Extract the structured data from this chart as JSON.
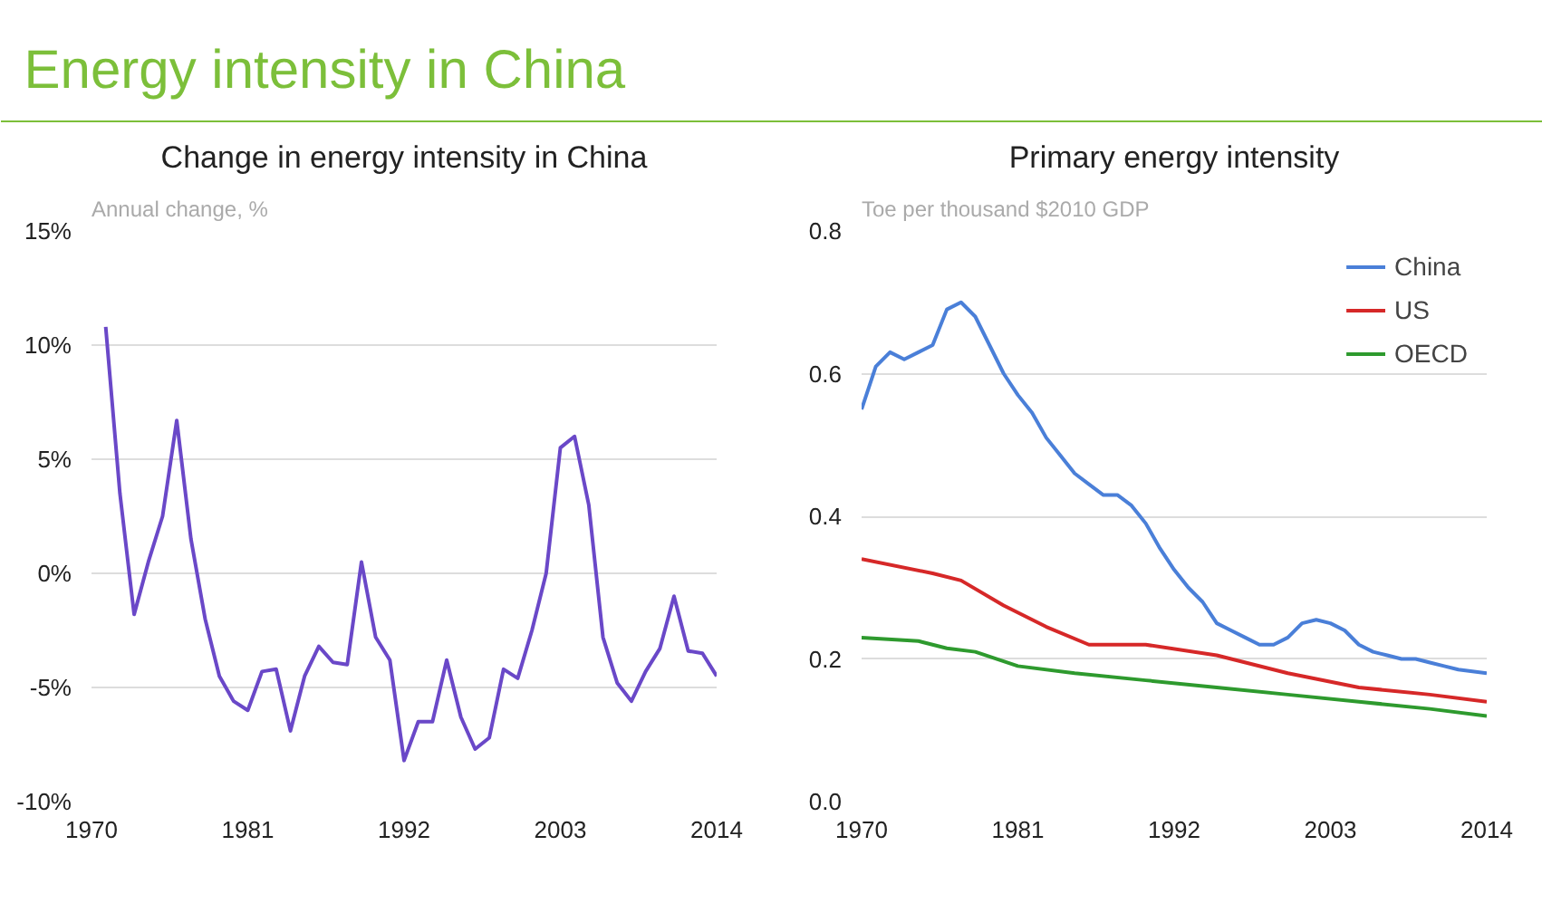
{
  "chart_data": [
    {
      "type": "other",
      "title": "Energy intensity in China",
      "color": "#7cbf3a"
    },
    {
      "type": "line",
      "title": "Change in energy intensity in China",
      "ylabel": "Annual change, %",
      "x": [
        1971,
        1972,
        1973,
        1974,
        1975,
        1976,
        1977,
        1978,
        1979,
        1980,
        1981,
        1982,
        1983,
        1984,
        1985,
        1986,
        1987,
        1988,
        1989,
        1990,
        1991,
        1992,
        1993,
        1994,
        1995,
        1996,
        1997,
        1998,
        1999,
        2000,
        2001,
        2002,
        2003,
        2004,
        2005,
        2006,
        2007,
        2008,
        2009,
        2010,
        2011,
        2012,
        2013,
        2014
      ],
      "series": [
        {
          "color": "#6a48c8",
          "values": [
            10.8,
            3.5,
            -1.8,
            0.5,
            2.5,
            6.7,
            1.5,
            -2,
            -4.5,
            -5.6,
            -6,
            -4.3,
            -4.2,
            -6.9,
            -4.5,
            -3.2,
            -3.9,
            -4,
            0.5,
            -2.8,
            -3.8,
            -8.2,
            -6.5,
            -6.5,
            -3.8,
            -6.3,
            -7.7,
            -7.2,
            -4.2,
            -4.6,
            -2.5,
            0,
            5.5,
            6,
            3,
            -2.8,
            -4.8,
            -5.6,
            -4.3,
            -3.3,
            -1,
            -3.4,
            -3.5,
            -4.5
          ]
        }
      ],
      "xlim": [
        1970,
        2014
      ],
      "xticks": [
        1970,
        1981,
        1992,
        2003,
        2014
      ],
      "ylim": [
        -10,
        15
      ],
      "yticks": [
        {
          "value": -10,
          "label": "-10%"
        },
        {
          "value": -5,
          "label": "-5%"
        },
        {
          "value": 0,
          "label": "0%"
        },
        {
          "value": 5,
          "label": "5%"
        },
        {
          "value": 10,
          "label": "10%"
        },
        {
          "value": 15,
          "label": "15%"
        }
      ],
      "grid": "y",
      "legend": false
    },
    {
      "type": "line",
      "title": "Primary energy intensity",
      "ylabel": "Toe per thousand $2010 GDP",
      "series": [
        {
          "name": "China",
          "color": "#4a7fd8",
          "x": [
            1970,
            1971,
            1972,
            1973,
            1974,
            1975,
            1976,
            1977,
            1978,
            1979,
            1980,
            1981,
            1982,
            1983,
            1984,
            1985,
            1986,
            1987,
            1988,
            1989,
            1990,
            1991,
            1992,
            1993,
            1994,
            1995,
            1996,
            1997,
            1998,
            1999,
            2000,
            2001,
            2002,
            2003,
            2004,
            2005,
            2006,
            2007,
            2008,
            2009,
            2010,
            2011,
            2012,
            2014
          ],
          "values": [
            0.55,
            0.61,
            0.63,
            0.62,
            0.63,
            0.64,
            0.69,
            0.7,
            0.68,
            0.64,
            0.6,
            0.57,
            0.545,
            0.51,
            0.485,
            0.46,
            0.445,
            0.43,
            0.43,
            0.415,
            0.39,
            0.355,
            0.325,
            0.3,
            0.28,
            0.25,
            0.24,
            0.23,
            0.22,
            0.22,
            0.23,
            0.25,
            0.255,
            0.25,
            0.24,
            0.22,
            0.21,
            0.205,
            0.2,
            0.2,
            0.195,
            0.19,
            0.185,
            0.18
          ]
        },
        {
          "name": "US",
          "color": "#d62828",
          "x": [
            1970,
            1975,
            1977,
            1980,
            1983,
            1986,
            1990,
            1995,
            2000,
            2005,
            2010,
            2014
          ],
          "values": [
            0.34,
            0.32,
            0.31,
            0.275,
            0.245,
            0.22,
            0.22,
            0.205,
            0.18,
            0.16,
            0.15,
            0.14
          ]
        },
        {
          "name": "OECD",
          "color": "#2e9a2e",
          "x": [
            1970,
            1974,
            1976,
            1978,
            1981,
            1985,
            1990,
            1995,
            2000,
            2005,
            2010,
            2014
          ],
          "values": [
            0.23,
            0.225,
            0.215,
            0.21,
            0.19,
            0.18,
            0.17,
            0.16,
            0.15,
            0.14,
            0.13,
            0.12
          ]
        }
      ],
      "xlim": [
        1970,
        2014
      ],
      "xticks": [
        1970,
        1981,
        1992,
        2003,
        2014
      ],
      "ylim": [
        0,
        0.8
      ],
      "yticks": [
        {
          "value": 0,
          "label": "0.0"
        },
        {
          "value": 0.2,
          "label": "0.2"
        },
        {
          "value": 0.4,
          "label": "0.4"
        },
        {
          "value": 0.6,
          "label": "0.6"
        },
        {
          "value": 0.8,
          "label": "0.8"
        }
      ],
      "grid": "y",
      "legend": "top right"
    }
  ]
}
